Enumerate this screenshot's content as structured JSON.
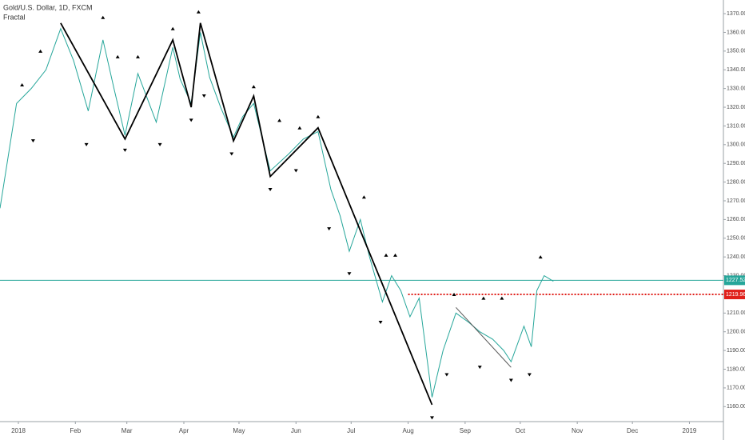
{
  "chart_data": {
    "type": "line",
    "title": "Gold/U.S. Dollar, 1D, FXCM",
    "subtitle": "Fractal",
    "xlim": [
      -10,
      383.5
    ],
    "ylim": [
      1152,
      1377.3
    ],
    "xticks": [
      {
        "value": 0,
        "label": "2018"
      },
      {
        "value": 31,
        "label": "Feb"
      },
      {
        "value": 59,
        "label": "Mar"
      },
      {
        "value": 90,
        "label": "Apr"
      },
      {
        "value": 120,
        "label": "May"
      },
      {
        "value": 151,
        "label": "Jun"
      },
      {
        "value": 181,
        "label": "Jul"
      },
      {
        "value": 212,
        "label": "Aug"
      },
      {
        "value": 243,
        "label": "Sep"
      },
      {
        "value": 273,
        "label": "Oct"
      },
      {
        "value": 304,
        "label": "Nov"
      },
      {
        "value": 334,
        "label": "Dec"
      },
      {
        "value": 365,
        "label": "2019"
      }
    ],
    "yticks": [
      {
        "value": 1160,
        "label": "1160.00"
      },
      {
        "value": 1170,
        "label": "1170.00"
      },
      {
        "value": 1180,
        "label": "1180.00"
      },
      {
        "value": 1190,
        "label": "1190.00"
      },
      {
        "value": 1200,
        "label": "1200.00"
      },
      {
        "value": 1210,
        "label": "1210.00"
      },
      {
        "value": 1220,
        "label": "1220.00"
      },
      {
        "value": 1230,
        "label": "1230.00"
      },
      {
        "value": 1240,
        "label": "1240.00"
      },
      {
        "value": 1250,
        "label": "1250.00"
      },
      {
        "value": 1260,
        "label": "1260.00"
      },
      {
        "value": 1270,
        "label": "1270.00"
      },
      {
        "value": 1280,
        "label": "1280.00"
      },
      {
        "value": 1290,
        "label": "1290.00"
      },
      {
        "value": 1300,
        "label": "1300.00"
      },
      {
        "value": 1310,
        "label": "1310.00"
      },
      {
        "value": 1320,
        "label": "1320.00"
      },
      {
        "value": 1330,
        "label": "1330.00"
      },
      {
        "value": 1340,
        "label": "1340.00"
      },
      {
        "value": 1350,
        "label": "1350.00"
      },
      {
        "value": 1360,
        "label": "1360.00"
      },
      {
        "value": 1370,
        "label": "1370.00"
      }
    ],
    "series": [
      {
        "color": "#26a69a",
        "x": [
          -10,
          -1,
          7,
          15,
          23,
          30,
          38,
          46,
          52,
          58,
          65,
          70,
          75,
          84,
          88,
          94,
          99,
          104,
          110,
          117,
          122,
          128,
          137,
          147,
          155,
          163,
          170,
          175,
          180,
          186,
          191,
          198,
          203,
          208,
          213,
          218,
          225,
          231,
          238,
          245,
          251,
          258,
          264,
          268,
          275,
          279,
          282,
          286,
          291
        ],
        "values": [
          1266,
          1322,
          1330,
          1340,
          1362,
          1345,
          1318,
          1356,
          1330,
          1305,
          1338,
          1325,
          1312,
          1352,
          1335,
          1322,
          1360,
          1336,
          1320,
          1304,
          1315,
          1322,
          1286,
          1295,
          1303,
          1307,
          1276,
          1262,
          1243,
          1260,
          1240,
          1216,
          1230,
          1222,
          1208,
          1218,
          1165,
          1190,
          1210,
          1205,
          1200,
          1196,
          1190,
          1184,
          1203,
          1192,
          1222,
          1230,
          1227
        ]
      },
      {
        "color": "#000000",
        "x": [
          23,
          58,
          84,
          94,
          99,
          117,
          128,
          137,
          163,
          225
        ],
        "values": [
          1365,
          1303,
          1356,
          1320,
          1365,
          1302,
          1326,
          1283,
          1309,
          1161
        ]
      },
      {
        "color": "#555555",
        "x": [
          238,
          268
        ],
        "values": [
          1213,
          1181
        ]
      }
    ],
    "fractals_up": {
      "x": [
        2,
        12,
        46,
        54,
        65,
        84,
        98,
        128,
        142,
        153,
        163,
        188,
        200,
        205,
        237,
        253,
        263,
        284
      ],
      "values": [
        1332,
        1350,
        1368,
        1347,
        1347,
        1362,
        1371,
        1331,
        1313,
        1309,
        1315,
        1272,
        1241,
        1241,
        1220,
        1218,
        1218,
        1240
      ]
    },
    "fractals_down": {
      "x": [
        8,
        37,
        58,
        77,
        94,
        101,
        116,
        137,
        151,
        169,
        180,
        197,
        225,
        233,
        251,
        268,
        278
      ],
      "values": [
        1302,
        1300,
        1297,
        1300,
        1313,
        1326,
        1295,
        1276,
        1286,
        1255,
        1231,
        1205,
        1154,
        1177,
        1181,
        1174,
        1177
      ]
    },
    "price_lines": [
      {
        "value": 1227.52,
        "color": "#26a69a"
      },
      {
        "value": 1219.96,
        "color": "#e0201b",
        "x_start": 212
      }
    ]
  }
}
